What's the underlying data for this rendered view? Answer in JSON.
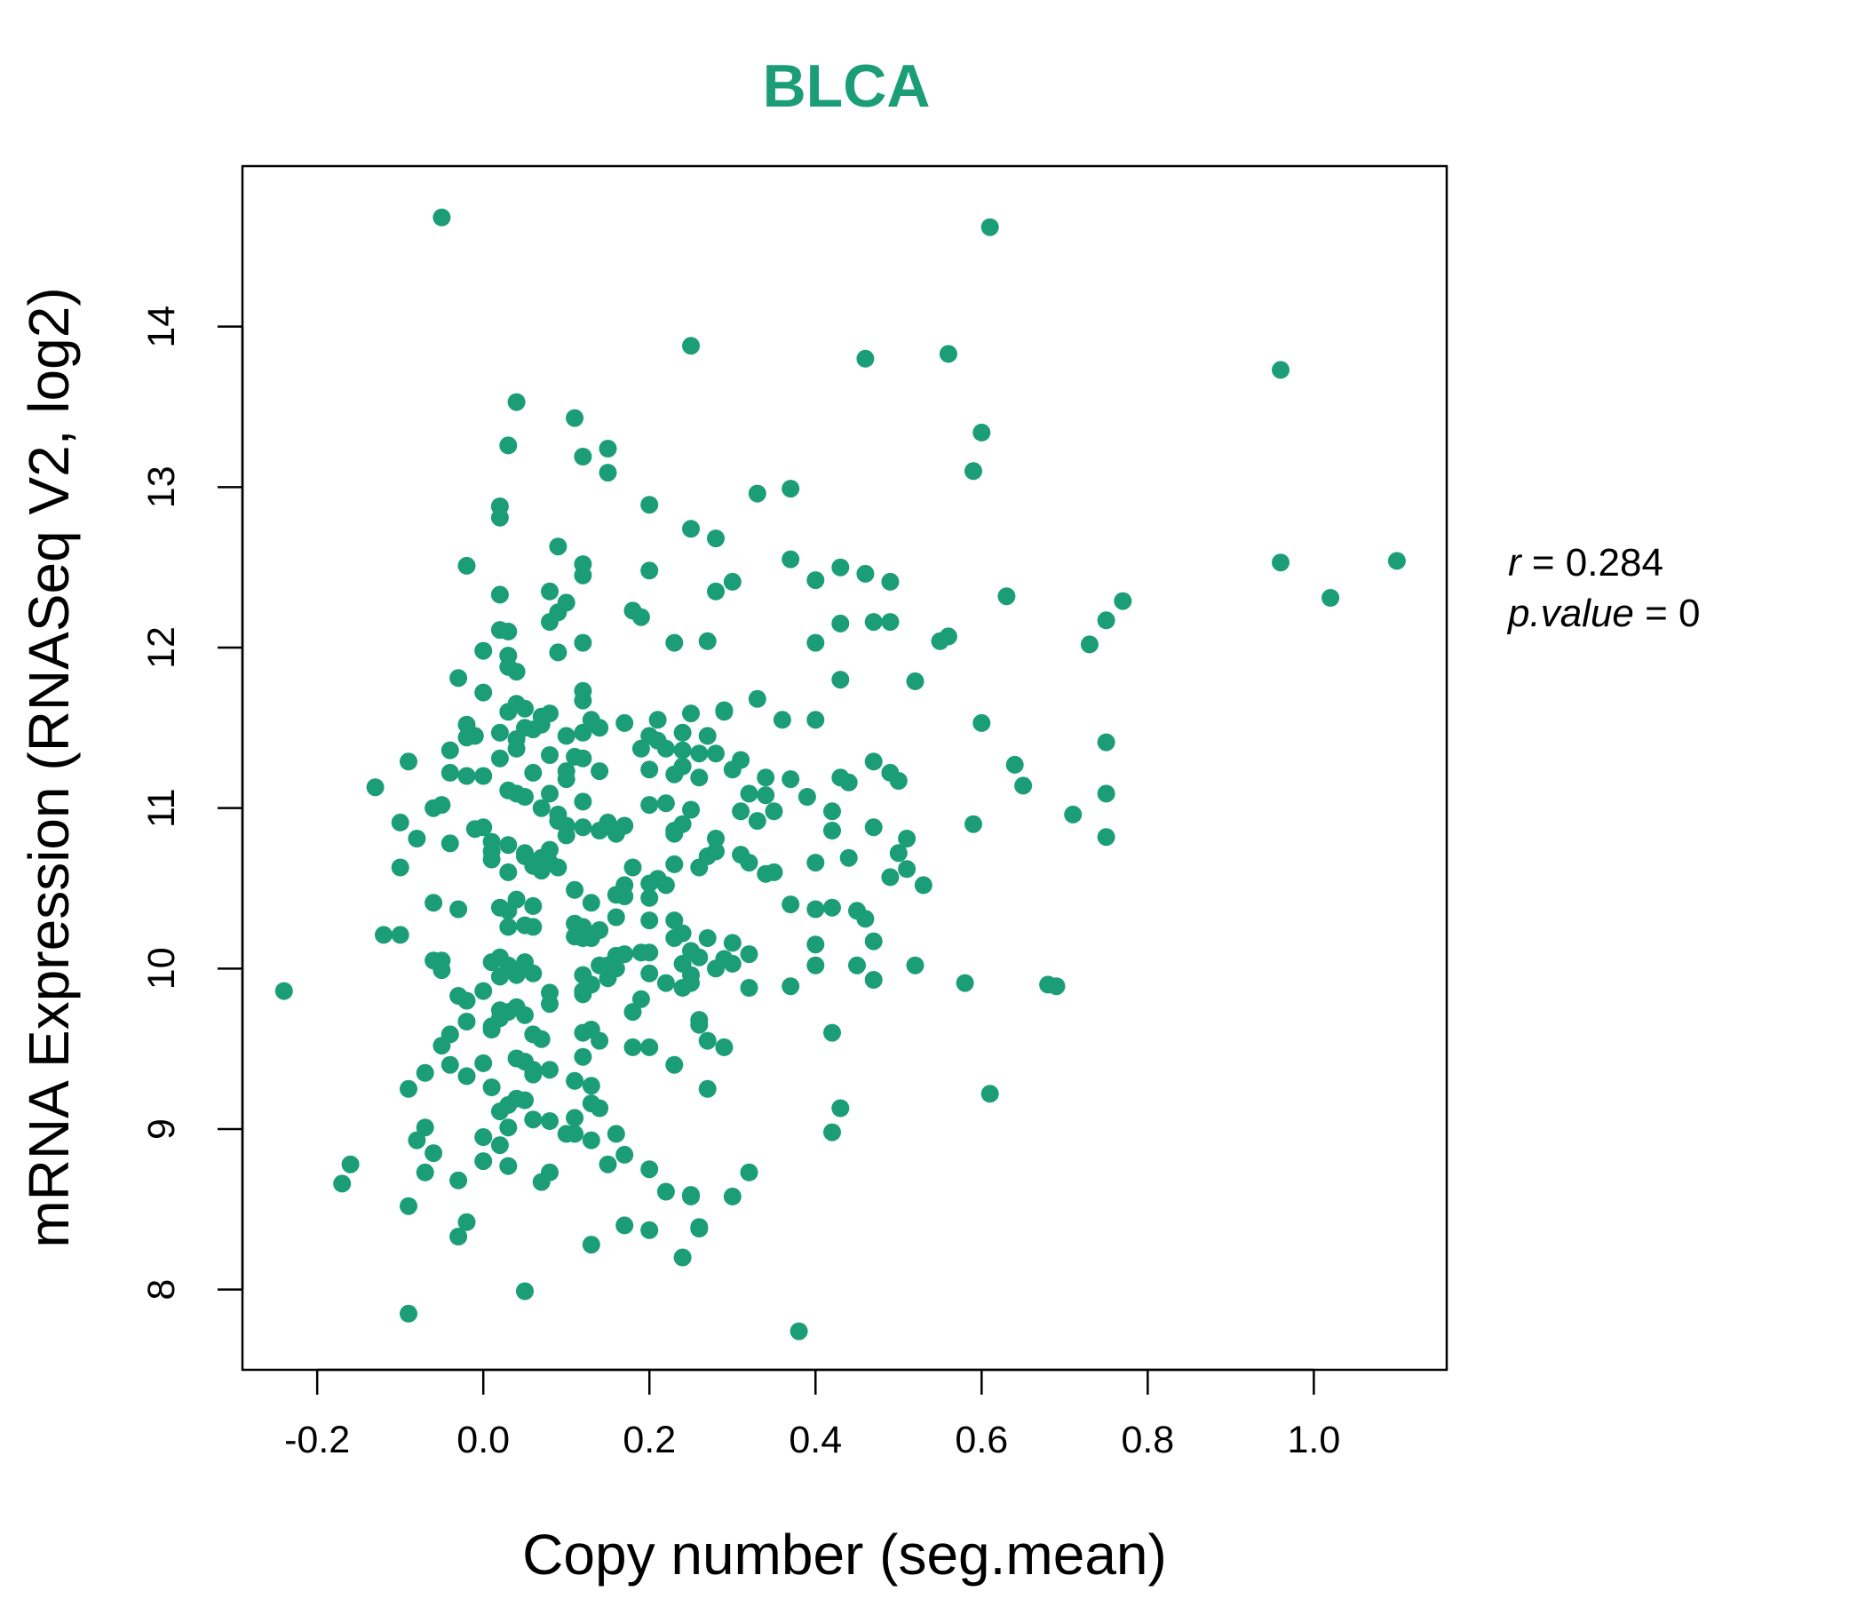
{
  "chart_data": {
    "type": "scatter",
    "title": "BLCA",
    "xlabel": "Copy number (seg.mean)",
    "ylabel": "mRNA Expression (RNASeq V2, log2)",
    "xlim": [
      -0.29,
      1.16
    ],
    "ylim": [
      7.5,
      15.0
    ],
    "x_ticks": [
      -0.2,
      0.0,
      0.2,
      0.4,
      0.6,
      0.8,
      1.0
    ],
    "x_tick_labels": [
      "-0.2",
      "0.0",
      "0.2",
      "0.4",
      "0.6",
      "0.8",
      "1.0"
    ],
    "y_ticks": [
      8,
      9,
      10,
      11,
      12,
      13,
      14
    ],
    "y_tick_labels": [
      "8",
      "9",
      "10",
      "11",
      "12",
      "13",
      "14"
    ],
    "color": "#1b9e77",
    "stats": {
      "r_symbol": "r",
      "r_eq": " = 0.284",
      "p_symbol": "p.value",
      "p_eq": " = 0"
    },
    "points": [
      [
        -0.05,
        14.68
      ],
      [
        0.61,
        14.62
      ],
      [
        0.25,
        13.88
      ],
      [
        0.46,
        13.8
      ],
      [
        0.56,
        13.83
      ],
      [
        0.96,
        13.73
      ],
      [
        0.04,
        13.53
      ],
      [
        0.11,
        13.43
      ],
      [
        0.03,
        13.26
      ],
      [
        0.15,
        13.24
      ],
      [
        0.12,
        13.19
      ],
      [
        0.15,
        13.09
      ],
      [
        0.6,
        13.34
      ],
      [
        0.59,
        13.1
      ],
      [
        0.37,
        12.99
      ],
      [
        0.33,
        12.96
      ],
      [
        0.02,
        12.88
      ],
      [
        0.02,
        12.81
      ],
      [
        0.2,
        12.89
      ],
      [
        0.25,
        12.74
      ],
      [
        0.28,
        12.68
      ],
      [
        0.09,
        12.63
      ],
      [
        0.37,
        12.55
      ],
      [
        0.12,
        12.52
      ],
      [
        -0.02,
        12.51
      ],
      [
        0.2,
        12.48
      ],
      [
        0.12,
        12.45
      ],
      [
        0.43,
        12.5
      ],
      [
        0.46,
        12.46
      ],
      [
        0.49,
        12.41
      ],
      [
        0.4,
        12.42
      ],
      [
        0.3,
        12.41
      ],
      [
        0.28,
        12.35
      ],
      [
        0.08,
        12.35
      ],
      [
        0.02,
        12.33
      ],
      [
        0.1,
        12.28
      ],
      [
        0.09,
        12.22
      ],
      [
        0.08,
        12.16
      ],
      [
        0.18,
        12.23
      ],
      [
        0.19,
        12.19
      ],
      [
        0.43,
        12.15
      ],
      [
        0.47,
        12.16
      ],
      [
        0.49,
        12.16
      ],
      [
        0.63,
        12.32
      ],
      [
        0.96,
        12.53
      ],
      [
        1.1,
        12.54
      ],
      [
        1.02,
        12.31
      ],
      [
        0.77,
        12.29
      ],
      [
        0.75,
        12.17
      ],
      [
        0.73,
        12.02
      ],
      [
        0.02,
        12.11
      ],
      [
        0.03,
        12.1
      ],
      [
        0.12,
        12.03
      ],
      [
        0.23,
        12.03
      ],
      [
        0.27,
        12.04
      ],
      [
        0.4,
        12.03
      ],
      [
        0.55,
        12.04
      ],
      [
        0.56,
        12.07
      ],
      [
        0.09,
        11.97
      ],
      [
        0.0,
        11.98
      ],
      [
        0.03,
        11.95
      ],
      [
        0.03,
        11.88
      ],
      [
        0.04,
        11.85
      ],
      [
        -0.03,
        11.81
      ],
      [
        0.43,
        11.8
      ],
      [
        0.52,
        11.79
      ],
      [
        0.0,
        11.72
      ],
      [
        0.12,
        11.73
      ],
      [
        0.12,
        11.67
      ],
      [
        0.33,
        11.68
      ],
      [
        0.04,
        11.65
      ],
      [
        0.05,
        11.62
      ],
      [
        0.03,
        11.6
      ],
      [
        0.07,
        11.57
      ],
      [
        0.08,
        11.59
      ],
      [
        0.25,
        11.59
      ],
      [
        0.29,
        11.61
      ],
      [
        0.29,
        11.6
      ],
      [
        0.13,
        11.55
      ],
      [
        0.17,
        11.53
      ],
      [
        0.21,
        11.55
      ],
      [
        0.36,
        11.55
      ],
      [
        0.4,
        11.55
      ],
      [
        0.6,
        11.53
      ],
      [
        -0.02,
        11.52
      ],
      [
        0.05,
        11.5
      ],
      [
        0.06,
        11.49
      ],
      [
        0.07,
        11.52
      ],
      [
        0.14,
        11.5
      ],
      [
        0.02,
        11.47
      ],
      [
        -0.01,
        11.45
      ],
      [
        -0.02,
        11.44
      ],
      [
        0.04,
        11.43
      ],
      [
        0.1,
        11.45
      ],
      [
        0.12,
        11.47
      ],
      [
        0.2,
        11.45
      ],
      [
        0.21,
        11.42
      ],
      [
        0.24,
        11.47
      ],
      [
        0.27,
        11.45
      ],
      [
        0.75,
        11.41
      ],
      [
        0.04,
        11.37
      ],
      [
        -0.04,
        11.36
      ],
      [
        0.08,
        11.33
      ],
      [
        0.11,
        11.32
      ],
      [
        0.19,
        11.37
      ],
      [
        0.22,
        11.37
      ],
      [
        0.24,
        11.36
      ],
      [
        0.26,
        11.34
      ],
      [
        0.28,
        11.34
      ],
      [
        0.31,
        11.3
      ],
      [
        -0.09,
        11.29
      ],
      [
        0.02,
        11.31
      ],
      [
        0.12,
        11.31
      ],
      [
        0.47,
        11.29
      ],
      [
        0.64,
        11.27
      ],
      [
        0.24,
        11.26
      ],
      [
        0.3,
        11.24
      ],
      [
        0.49,
        11.22
      ],
      [
        -0.04,
        11.22
      ],
      [
        0.06,
        11.22
      ],
      [
        0.1,
        11.23
      ],
      [
        0.14,
        11.23
      ],
      [
        0.2,
        11.24
      ],
      [
        0.23,
        11.21
      ],
      [
        -0.02,
        11.2
      ],
      [
        0.0,
        11.2
      ],
      [
        0.1,
        11.18
      ],
      [
        0.26,
        11.19
      ],
      [
        0.34,
        11.19
      ],
      [
        0.43,
        11.19
      ],
      [
        0.37,
        11.18
      ],
      [
        0.44,
        11.16
      ],
      [
        0.5,
        11.17
      ],
      [
        -0.13,
        11.13
      ],
      [
        0.65,
        11.14
      ],
      [
        0.03,
        11.11
      ],
      [
        0.04,
        11.09
      ],
      [
        0.08,
        11.09
      ],
      [
        0.32,
        11.09
      ],
      [
        0.34,
        11.08
      ],
      [
        0.39,
        11.07
      ],
      [
        0.75,
        11.09
      ],
      [
        0.05,
        11.07
      ],
      [
        0.12,
        11.04
      ],
      [
        0.2,
        11.02
      ],
      [
        0.22,
        11.03
      ],
      [
        -0.05,
        11.02
      ],
      [
        -0.06,
        11.0
      ],
      [
        0.07,
        11.0
      ],
      [
        0.09,
        10.96
      ],
      [
        0.25,
        10.99
      ],
      [
        0.31,
        10.98
      ],
      [
        0.35,
        10.98
      ],
      [
        0.42,
        10.98
      ],
      [
        0.71,
        10.96
      ],
      [
        0.09,
        10.92
      ],
      [
        0.15,
        10.91
      ],
      [
        -0.1,
        10.91
      ],
      [
        0.1,
        10.89
      ],
      [
        0.17,
        10.89
      ],
      [
        0.24,
        10.9
      ],
      [
        0.33,
        10.92
      ],
      [
        0.12,
        10.88
      ],
      [
        0.14,
        10.86
      ],
      [
        0.23,
        10.86
      ],
      [
        0.42,
        10.86
      ],
      [
        0.47,
        10.88
      ],
      [
        0.59,
        10.9
      ],
      [
        0.0,
        10.88
      ],
      [
        -0.01,
        10.87
      ],
      [
        0.16,
        10.84
      ],
      [
        0.23,
        10.84
      ],
      [
        0.1,
        10.83
      ],
      [
        -0.08,
        10.81
      ],
      [
        0.51,
        10.81
      ],
      [
        0.75,
        10.82
      ],
      [
        0.28,
        10.81
      ],
      [
        0.01,
        10.79
      ],
      [
        -0.04,
        10.78
      ],
      [
        0.03,
        10.77
      ],
      [
        0.01,
        10.73
      ],
      [
        0.08,
        10.74
      ],
      [
        0.28,
        10.73
      ],
      [
        0.05,
        10.72
      ],
      [
        0.05,
        10.7
      ],
      [
        0.07,
        10.69
      ],
      [
        0.01,
        10.68
      ],
      [
        0.27,
        10.7
      ],
      [
        0.31,
        10.71
      ],
      [
        0.44,
        10.69
      ],
      [
        0.5,
        10.72
      ],
      [
        0.4,
        10.66
      ],
      [
        0.06,
        10.64
      ],
      [
        0.08,
        10.66
      ],
      [
        0.18,
        10.63
      ],
      [
        0.23,
        10.65
      ],
      [
        0.26,
        10.63
      ],
      [
        0.32,
        10.66
      ],
      [
        0.07,
        10.61
      ],
      [
        0.09,
        10.63
      ],
      [
        -0.1,
        10.63
      ],
      [
        0.03,
        10.6
      ],
      [
        0.35,
        10.6
      ],
      [
        0.51,
        10.62
      ],
      [
        0.21,
        10.56
      ],
      [
        0.34,
        10.59
      ],
      [
        0.49,
        10.57
      ],
      [
        0.2,
        10.53
      ],
      [
        0.17,
        10.52
      ],
      [
        0.22,
        10.52
      ],
      [
        0.53,
        10.52
      ],
      [
        0.11,
        10.49
      ],
      [
        0.16,
        10.46
      ],
      [
        0.17,
        10.45
      ],
      [
        0.2,
        10.44
      ],
      [
        0.04,
        10.43
      ],
      [
        -0.06,
        10.41
      ],
      [
        0.13,
        10.41
      ],
      [
        0.06,
        10.39
      ],
      [
        0.02,
        10.38
      ],
      [
        0.03,
        10.36
      ],
      [
        -0.03,
        10.37
      ],
      [
        0.37,
        10.4
      ],
      [
        0.4,
        10.37
      ],
      [
        0.42,
        10.38
      ],
      [
        0.45,
        10.36
      ],
      [
        0.46,
        10.31
      ],
      [
        0.2,
        10.3
      ],
      [
        0.23,
        10.3
      ],
      [
        0.16,
        10.32
      ],
      [
        0.11,
        10.28
      ],
      [
        0.12,
        10.26
      ],
      [
        0.03,
        10.26
      ],
      [
        0.05,
        10.27
      ],
      [
        0.06,
        10.26
      ],
      [
        0.14,
        10.24
      ],
      [
        -0.12,
        10.21
      ],
      [
        -0.1,
        10.21
      ],
      [
        0.11,
        10.2
      ],
      [
        0.12,
        10.19
      ],
      [
        0.13,
        10.19
      ],
      [
        0.23,
        10.19
      ],
      [
        0.24,
        10.22
      ],
      [
        0.27,
        10.19
      ],
      [
        0.47,
        10.17
      ],
      [
        0.3,
        10.16
      ],
      [
        0.4,
        10.15
      ],
      [
        0.19,
        10.1
      ],
      [
        0.16,
        10.08
      ],
      [
        0.17,
        10.09
      ],
      [
        0.2,
        10.1
      ],
      [
        0.25,
        10.11
      ],
      [
        0.26,
        10.07
      ],
      [
        0.29,
        10.06
      ],
      [
        0.32,
        10.09
      ],
      [
        0.02,
        10.07
      ],
      [
        -0.06,
        10.05
      ],
      [
        -0.05,
        10.05
      ],
      [
        0.01,
        10.04
      ],
      [
        0.03,
        10.02
      ],
      [
        0.05,
        10.04
      ],
      [
        0.14,
        10.02
      ],
      [
        0.15,
        10.02
      ],
      [
        0.16,
        10.0
      ],
      [
        0.24,
        10.03
      ],
      [
        0.28,
        10.0
      ],
      [
        0.3,
        10.03
      ],
      [
        0.4,
        10.02
      ],
      [
        0.45,
        10.02
      ],
      [
        0.52,
        10.02
      ],
      [
        -0.05,
        9.99
      ],
      [
        0.06,
        9.97
      ],
      [
        0.12,
        9.96
      ],
      [
        0.2,
        9.97
      ],
      [
        0.25,
        9.96
      ],
      [
        0.02,
        9.95
      ],
      [
        0.04,
        9.96
      ],
      [
        0.15,
        9.94
      ],
      [
        0.47,
        9.93
      ],
      [
        0.25,
        9.91
      ],
      [
        0.22,
        9.91
      ],
      [
        0.13,
        9.9
      ],
      [
        0.58,
        9.91
      ],
      [
        0.68,
        9.9
      ],
      [
        0.69,
        9.89
      ],
      [
        0.24,
        9.88
      ],
      [
        0.32,
        9.88
      ],
      [
        0.37,
        9.89
      ],
      [
        -0.24,
        9.86
      ],
      [
        0.0,
        9.86
      ],
      [
        0.12,
        9.86
      ],
      [
        0.08,
        9.85
      ],
      [
        0.12,
        9.84
      ],
      [
        -0.03,
        9.83
      ],
      [
        -0.02,
        9.8
      ],
      [
        0.19,
        9.81
      ],
      [
        0.08,
        9.78
      ],
      [
        0.04,
        9.76
      ],
      [
        0.02,
        9.74
      ],
      [
        0.03,
        9.73
      ],
      [
        0.18,
        9.73
      ],
      [
        0.05,
        9.71
      ],
      [
        0.02,
        9.69
      ],
      [
        0.26,
        9.68
      ],
      [
        -0.02,
        9.67
      ],
      [
        0.01,
        9.64
      ],
      [
        0.26,
        9.65
      ],
      [
        0.01,
        9.62
      ],
      [
        0.13,
        9.62
      ],
      [
        0.12,
        9.6
      ],
      [
        0.06,
        9.59
      ],
      [
        0.42,
        9.6
      ],
      [
        -0.04,
        9.59
      ],
      [
        0.07,
        9.56
      ],
      [
        0.14,
        9.55
      ],
      [
        0.27,
        9.55
      ],
      [
        -0.05,
        9.52
      ],
      [
        0.18,
        9.51
      ],
      [
        0.2,
        9.51
      ],
      [
        0.29,
        9.51
      ],
      [
        0.12,
        9.45
      ],
      [
        0.04,
        9.44
      ],
      [
        0.05,
        9.42
      ],
      [
        0.23,
        9.4
      ],
      [
        0.0,
        9.41
      ],
      [
        -0.04,
        9.4
      ],
      [
        0.06,
        9.37
      ],
      [
        0.08,
        9.37
      ],
      [
        -0.07,
        9.35
      ],
      [
        0.06,
        9.34
      ],
      [
        -0.02,
        9.33
      ],
      [
        0.11,
        9.3
      ],
      [
        0.13,
        9.27
      ],
      [
        0.01,
        9.26
      ],
      [
        0.27,
        9.25
      ],
      [
        -0.09,
        9.25
      ],
      [
        0.61,
        9.22
      ],
      [
        0.04,
        9.19
      ],
      [
        0.05,
        9.18
      ],
      [
        0.03,
        9.15
      ],
      [
        0.13,
        9.16
      ],
      [
        0.14,
        9.13
      ],
      [
        0.02,
        9.11
      ],
      [
        0.43,
        9.13
      ],
      [
        0.11,
        9.07
      ],
      [
        0.06,
        9.06
      ],
      [
        0.08,
        9.05
      ],
      [
        0.03,
        9.01
      ],
      [
        -0.07,
        9.01
      ],
      [
        0.1,
        8.97
      ],
      [
        0.11,
        8.97
      ],
      [
        0.16,
        8.97
      ],
      [
        0.42,
        8.98
      ],
      [
        0.0,
        8.95
      ],
      [
        0.13,
        8.93
      ],
      [
        -0.08,
        8.93
      ],
      [
        0.02,
        8.9
      ],
      [
        -0.06,
        8.85
      ],
      [
        0.17,
        8.84
      ],
      [
        0.0,
        8.8
      ],
      [
        0.15,
        8.78
      ],
      [
        -0.16,
        8.78
      ],
      [
        0.03,
        8.77
      ],
      [
        0.2,
        8.75
      ],
      [
        -0.07,
        8.73
      ],
      [
        0.08,
        8.73
      ],
      [
        0.32,
        8.73
      ],
      [
        0.07,
        8.67
      ],
      [
        -0.03,
        8.68
      ],
      [
        -0.17,
        8.66
      ],
      [
        0.22,
        8.61
      ],
      [
        0.25,
        8.59
      ],
      [
        0.25,
        8.58
      ],
      [
        0.3,
        8.58
      ],
      [
        -0.09,
        8.52
      ],
      [
        -0.02,
        8.42
      ],
      [
        0.17,
        8.4
      ],
      [
        0.2,
        8.37
      ],
      [
        0.26,
        8.39
      ],
      [
        0.26,
        8.38
      ],
      [
        -0.03,
        8.33
      ],
      [
        0.13,
        8.28
      ],
      [
        0.24,
        8.2
      ],
      [
        0.05,
        7.99
      ],
      [
        -0.09,
        7.85
      ],
      [
        0.38,
        7.74
      ]
    ]
  }
}
